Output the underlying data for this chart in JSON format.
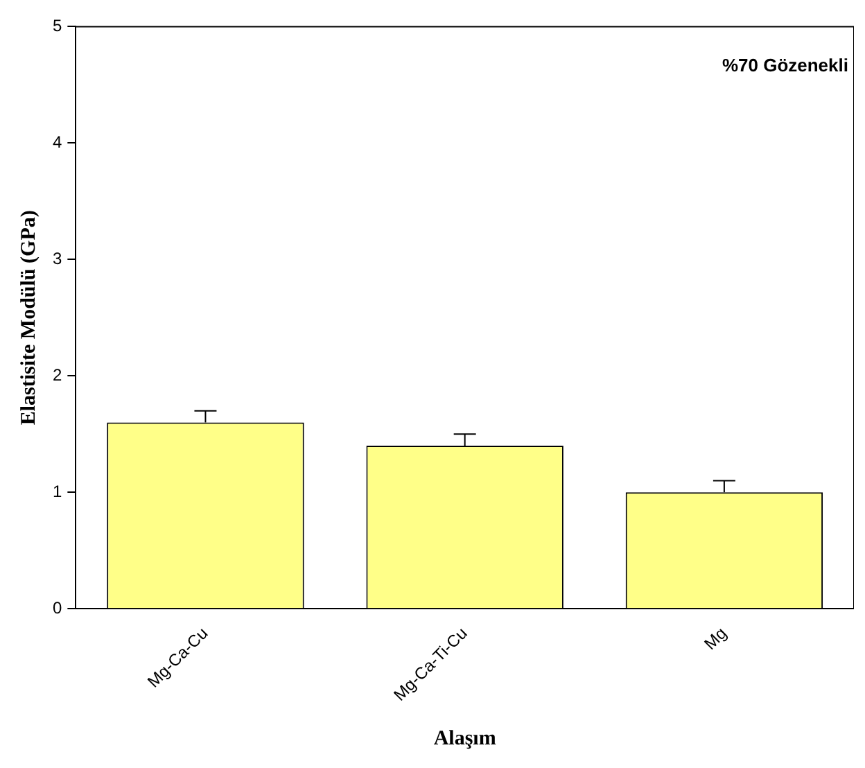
{
  "chart_data": {
    "type": "bar",
    "xlabel": "Alaşım",
    "ylabel": "Elastisite Modülü (GPa)",
    "categories": [
      "Mg-Ca-Cu",
      "Mg-Ca-Ti-Cu",
      "Mg"
    ],
    "values": [
      1.6,
      1.4,
      1.0
    ],
    "errors": [
      0.1,
      0.1,
      0.1
    ],
    "color": "#ffff88",
    "ylim": [
      0,
      5
    ],
    "yticks": [
      0,
      1,
      2,
      3,
      4,
      5
    ],
    "grid": false,
    "legend": false,
    "annotations": [
      "%70 Gözenekli"
    ]
  }
}
